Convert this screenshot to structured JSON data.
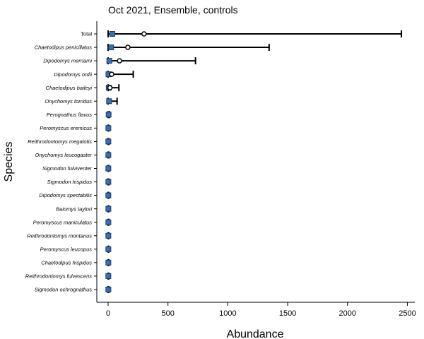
{
  "chart_data": {
    "type": "dot-errorbar",
    "title": "Oct 2021, Ensemble, controls",
    "xlabel": "Abundance",
    "ylabel": "Species",
    "xlim": [
      -80,
      2540
    ],
    "xticks": [
      0,
      500,
      1000,
      1500,
      2000,
      2500
    ],
    "grid": false,
    "legend": "none",
    "colors": {
      "point_fill": "#3a6fb5",
      "point_stroke": "#1b3b6b",
      "mean_fill": "#ffffff",
      "line": "#000000"
    },
    "series": [
      {
        "label": "Total",
        "italic": false,
        "observed": 35,
        "mean": 300,
        "low": 0,
        "high": 2450
      },
      {
        "label": "Chaetodipus penicillatus",
        "italic": true,
        "observed": 25,
        "mean": 165,
        "low": 0,
        "high": 1345
      },
      {
        "label": "Dipodomys merriami",
        "italic": true,
        "observed": 10,
        "mean": 95,
        "low": 0,
        "high": 730
      },
      {
        "label": "Dipodomys ordii",
        "italic": true,
        "observed": 3,
        "mean": 30,
        "low": 0,
        "high": 210
      },
      {
        "label": "Chaetodipus baileyi",
        "italic": true,
        "observed": 5,
        "mean": 15,
        "low": 0,
        "high": 90
      },
      {
        "label": "Onychomys torridus",
        "italic": true,
        "observed": 8,
        "mean": 10,
        "low": 0,
        "high": 75
      },
      {
        "label": "Perognathus flavus",
        "italic": true,
        "observed": 4,
        "mean": 4,
        "low": 0,
        "high": 12
      },
      {
        "label": "Peromyscus eremicus",
        "italic": true,
        "observed": 2,
        "mean": 2,
        "low": 0,
        "high": 6
      },
      {
        "label": "Reithrodontomys megalotis",
        "italic": true,
        "observed": 2,
        "mean": 2,
        "low": 0,
        "high": 6
      },
      {
        "label": "Onychomys leucogaster",
        "italic": true,
        "observed": 2,
        "mean": 2,
        "low": 0,
        "high": 6
      },
      {
        "label": "Sigmodon fulviventer",
        "italic": true,
        "observed": 2,
        "mean": 2,
        "low": 0,
        "high": 6
      },
      {
        "label": "Sigmodon hispidus",
        "italic": true,
        "observed": 2,
        "mean": 2,
        "low": 0,
        "high": 6
      },
      {
        "label": "Dipodomys spectabilis",
        "italic": true,
        "observed": 2,
        "mean": 2,
        "low": 0,
        "high": 6
      },
      {
        "label": "Baiomys taylori",
        "italic": true,
        "observed": 2,
        "mean": 2,
        "low": 0,
        "high": 6
      },
      {
        "label": "Peromyscus maniculatus",
        "italic": true,
        "observed": 2,
        "mean": 2,
        "low": 0,
        "high": 6
      },
      {
        "label": "Reithrodontomys montanus",
        "italic": true,
        "observed": 2,
        "mean": 2,
        "low": 0,
        "high": 6
      },
      {
        "label": "Peromyscus leucopus",
        "italic": true,
        "observed": 2,
        "mean": 2,
        "low": 0,
        "high": 6
      },
      {
        "label": "Chaetodipus hispidus",
        "italic": true,
        "observed": 2,
        "mean": 2,
        "low": 0,
        "high": 6
      },
      {
        "label": "Reithrodontomys fulvescens",
        "italic": true,
        "observed": 2,
        "mean": 2,
        "low": 0,
        "high": 6
      },
      {
        "label": "Sigmodon ochrognathus",
        "italic": true,
        "observed": 2,
        "mean": 2,
        "low": 0,
        "high": 6
      }
    ]
  }
}
